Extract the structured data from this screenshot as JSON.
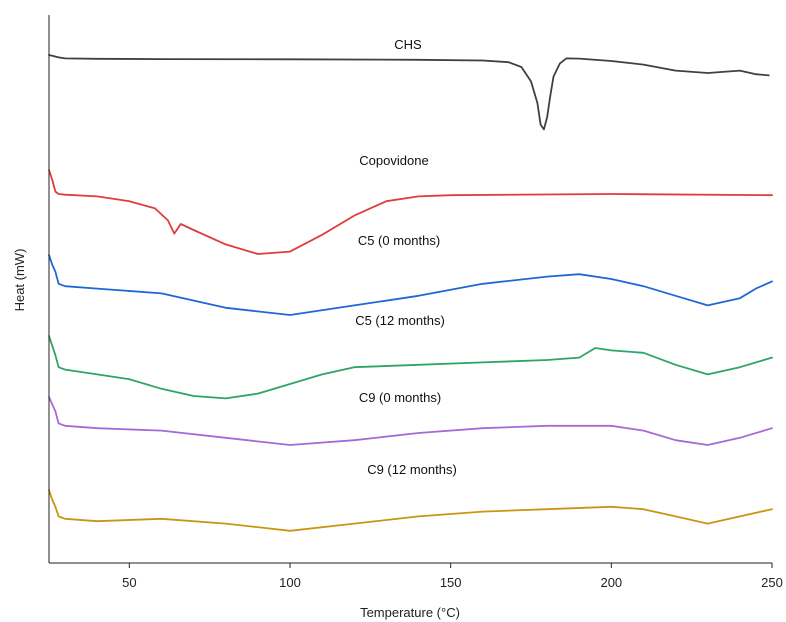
{
  "chart_data": {
    "type": "line",
    "xlabel": "Temperature (°C)",
    "ylabel": "Heat (mW)",
    "xlim": [
      25,
      250
    ],
    "x_ticks": [
      50,
      100,
      150,
      200,
      250
    ],
    "y_ticks_shown": false,
    "grid": false,
    "legend": "none (series labelled directly above each curve)",
    "series": [
      {
        "name": "CHS",
        "color": "#404040",
        "points": [
          [
            25,
            0.0
          ],
          [
            26,
            0.3
          ],
          [
            28,
            1.0
          ],
          [
            30,
            1.4
          ],
          [
            40,
            1.6
          ],
          [
            60,
            1.7
          ],
          [
            100,
            1.8
          ],
          [
            140,
            2.0
          ],
          [
            160,
            2.3
          ],
          [
            168,
            3.0
          ],
          [
            172,
            5.0
          ],
          [
            175,
            11.0
          ],
          [
            177,
            20.0
          ],
          [
            178,
            29.0
          ],
          [
            179,
            31.0
          ],
          [
            180,
            26.0
          ],
          [
            181,
            17.0
          ],
          [
            182,
            9.0
          ],
          [
            184,
            3.5
          ],
          [
            186,
            1.4
          ],
          [
            190,
            1.5
          ],
          [
            200,
            2.5
          ],
          [
            210,
            4.0
          ],
          [
            220,
            6.5
          ],
          [
            230,
            7.5
          ],
          [
            240,
            6.5
          ],
          [
            245,
            8.0
          ],
          [
            249,
            8.5
          ]
        ]
      },
      {
        "name": "Copovidone",
        "color": "#e03c3c",
        "points": [
          [
            25,
            0.0
          ],
          [
            26,
            4.0
          ],
          [
            27,
            9.0
          ],
          [
            28,
            10.0
          ],
          [
            30,
            10.3
          ],
          [
            40,
            11.0
          ],
          [
            50,
            13.0
          ],
          [
            58,
            16.0
          ],
          [
            62,
            21.0
          ],
          [
            64,
            26.5
          ],
          [
            66,
            22.5
          ],
          [
            70,
            25.0
          ],
          [
            80,
            31.0
          ],
          [
            90,
            35.0
          ],
          [
            100,
            34.0
          ],
          [
            110,
            27.0
          ],
          [
            120,
            19.0
          ],
          [
            130,
            13.0
          ],
          [
            140,
            11.0
          ],
          [
            150,
            10.5
          ],
          [
            200,
            10.0
          ],
          [
            250,
            10.5
          ]
        ]
      },
      {
        "name": "C5 (0 months)",
        "color": "#1f68d4",
        "points": [
          [
            25,
            0.0
          ],
          [
            26,
            4.0
          ],
          [
            27,
            7.0
          ],
          [
            28,
            12.0
          ],
          [
            30,
            13.0
          ],
          [
            40,
            14.0
          ],
          [
            60,
            16.0
          ],
          [
            80,
            22.0
          ],
          [
            100,
            25.0
          ],
          [
            120,
            21.0
          ],
          [
            140,
            17.0
          ],
          [
            160,
            12.0
          ],
          [
            180,
            9.0
          ],
          [
            190,
            8.0
          ],
          [
            200,
            10.0
          ],
          [
            210,
            13.0
          ],
          [
            220,
            17.0
          ],
          [
            230,
            21.0
          ],
          [
            240,
            18.0
          ],
          [
            245,
            14.0
          ],
          [
            250,
            11.0
          ]
        ]
      },
      {
        "name": "C5 (12 months)",
        "color": "#2fa36a",
        "points": [
          [
            25,
            0.0
          ],
          [
            26,
            4.0
          ],
          [
            27,
            8.0
          ],
          [
            28,
            13.0
          ],
          [
            30,
            14.0
          ],
          [
            40,
            16.0
          ],
          [
            50,
            18.0
          ],
          [
            60,
            22.0
          ],
          [
            70,
            25.0
          ],
          [
            80,
            26.0
          ],
          [
            90,
            24.0
          ],
          [
            100,
            20.0
          ],
          [
            110,
            16.0
          ],
          [
            120,
            13.0
          ],
          [
            140,
            12.0
          ],
          [
            160,
            11.0
          ],
          [
            180,
            10.0
          ],
          [
            190,
            9.0
          ],
          [
            195,
            5.0
          ],
          [
            200,
            6.0
          ],
          [
            210,
            7.0
          ],
          [
            220,
            12.0
          ],
          [
            230,
            16.0
          ],
          [
            240,
            13.0
          ],
          [
            245,
            11.0
          ],
          [
            250,
            9.0
          ]
        ]
      },
      {
        "name": "C9 (0 months)",
        "color": "#a66ad8",
        "points": [
          [
            25,
            0.0
          ],
          [
            26,
            3.0
          ],
          [
            27,
            6.0
          ],
          [
            28,
            11.0
          ],
          [
            30,
            12.0
          ],
          [
            40,
            13.0
          ],
          [
            60,
            14.0
          ],
          [
            80,
            17.0
          ],
          [
            100,
            20.0
          ],
          [
            120,
            18.0
          ],
          [
            140,
            15.0
          ],
          [
            160,
            13.0
          ],
          [
            180,
            12.0
          ],
          [
            200,
            12.0
          ],
          [
            210,
            14.0
          ],
          [
            220,
            18.0
          ],
          [
            230,
            20.0
          ],
          [
            240,
            17.0
          ],
          [
            250,
            13.0
          ]
        ]
      },
      {
        "name": "C9 (12 months)",
        "color": "#c99612",
        "points": [
          [
            25,
            0.0
          ],
          [
            26,
            4.0
          ],
          [
            27,
            7.0
          ],
          [
            28,
            11.0
          ],
          [
            30,
            12.0
          ],
          [
            40,
            13.0
          ],
          [
            60,
            12.0
          ],
          [
            80,
            14.0
          ],
          [
            100,
            17.0
          ],
          [
            120,
            14.0
          ],
          [
            140,
            11.0
          ],
          [
            160,
            9.0
          ],
          [
            180,
            8.0
          ],
          [
            200,
            7.0
          ],
          [
            210,
            8.0
          ],
          [
            220,
            11.0
          ],
          [
            230,
            14.0
          ],
          [
            240,
            11.0
          ],
          [
            250,
            8.0
          ]
        ]
      }
    ]
  }
}
